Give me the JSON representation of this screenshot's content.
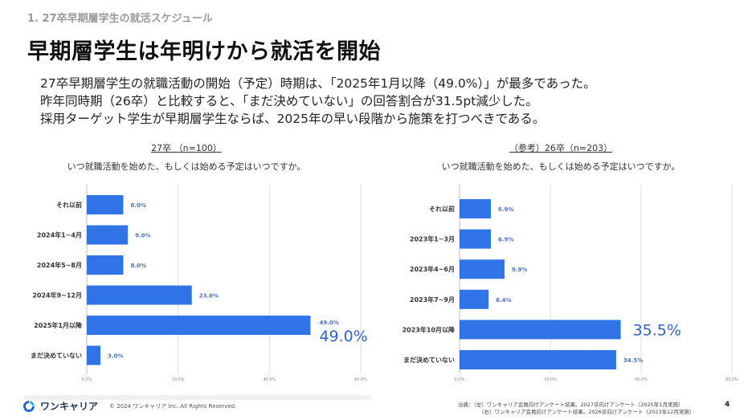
{
  "section_label": "1. 27卒早期層学生の就活スケジュール",
  "page_title": "早期層学生は年明けから就活を開始",
  "lead": [
    "27卒早期層学生の就職活動の開始（予定）時期は、「2025年1月以降（49.0%）」が最多であった。",
    "昨年同時期（26卒）と比較すると、「まだ決めていない」の回答割合が31.5pt減少した。",
    "採用ターゲット学生が早期層学生ならば、2025年の早い段階から施策を打つべきである。"
  ],
  "colors": {
    "bar": "#3174e8",
    "label": "#4a74c9",
    "grid": "#dddddd"
  },
  "chart_data": [
    {
      "type": "bar",
      "orientation": "horizontal",
      "title": "27卒 （n=100）",
      "subtitle": "いつ就職活動を始めた、もしくは始める予定はいつですか。",
      "categories": [
        "それ以前",
        "2024年1~4月",
        "2024年5~8月",
        "2024年9~12月",
        "2025年1月以降",
        "まだ決めていない"
      ],
      "values": [
        8.0,
        9.0,
        8.0,
        23.0,
        49.0,
        3.0
      ],
      "value_labels": [
        "8.0%",
        "9.0%",
        "8.0%",
        "23.0%",
        "49.0%",
        "3.0%"
      ],
      "highlight_index": 4,
      "highlight_label": "49.0%",
      "xlim": [
        0,
        60
      ],
      "xticks": [
        "0.0%",
        "20.0%",
        "40.0%",
        "60.0%"
      ],
      "grid": true
    },
    {
      "type": "bar",
      "orientation": "horizontal",
      "title": "（参考）26卒（n=203）",
      "subtitle": "いつ就職活動を始めた、もしくは始める予定はいつですか。",
      "categories": [
        "それ以前",
        "2023年1~3月",
        "2023年4~6月",
        "2023年7~9月",
        "2023年10月以降",
        "まだ決めていない"
      ],
      "values": [
        6.9,
        6.9,
        9.9,
        6.4,
        35.5,
        34.5
      ],
      "value_labels": [
        "6.9%",
        "6.9%",
        "9.9%",
        "6.4%",
        "35.5%",
        "34.5%"
      ],
      "highlight_index": 4,
      "highlight_label": "35.5%",
      "xlim": [
        0,
        60
      ],
      "xticks": [
        "0.0%",
        "20.0%",
        "40.0%",
        "60.0%"
      ],
      "grid": true
    }
  ],
  "footer": {
    "brand": "ワンキャリア",
    "copyright": "© 2024 ワンキャリア Inc. All Rights Reserved.",
    "source_1": "出典：（左）ワンキャリア会員向けアンケート結果。2027卒向けアンケート（2025年1月実施）",
    "source_2": "（右）ワンキャリア会員向けアンケート結果。2026卒向けアンケート（2023年12月実施）",
    "page": "4"
  }
}
